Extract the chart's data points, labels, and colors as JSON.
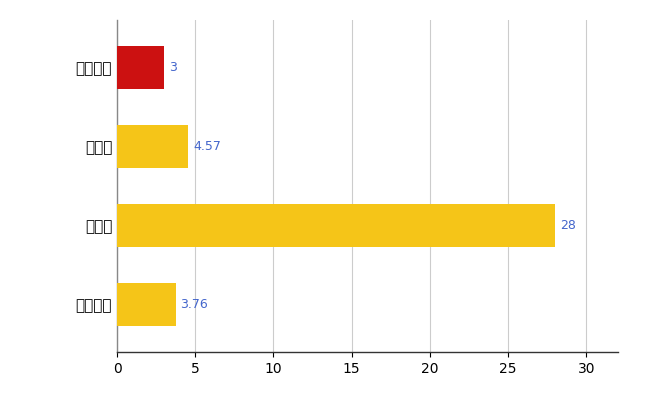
{
  "categories": [
    "いすみ市",
    "県平均",
    "県最大",
    "全国平均"
  ],
  "values": [
    3,
    4.57,
    28,
    3.76
  ],
  "bar_colors": [
    "#cc1111",
    "#f5c518",
    "#f5c518",
    "#f5c518"
  ],
  "value_labels": [
    "3",
    "4.57",
    "28",
    "3.76"
  ],
  "label_color": "#4466cc",
  "xlim": [
    0,
    32
  ],
  "xticks": [
    0,
    5,
    10,
    15,
    20,
    25,
    30
  ],
  "grid_color": "#cccccc",
  "background_color": "#ffffff",
  "bar_height": 0.55
}
